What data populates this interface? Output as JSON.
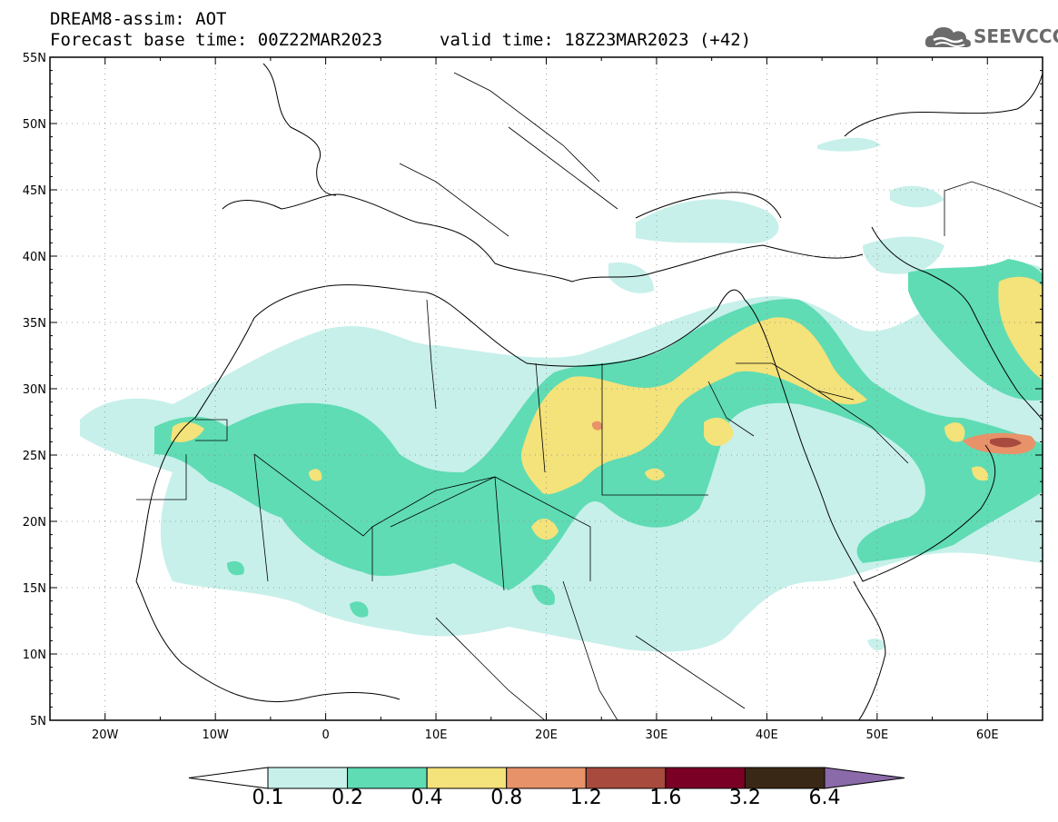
{
  "title": {
    "line1": "DREAM8-assim: AOT",
    "line2": "Forecast base time: 00Z22MAR2023",
    "line3": "valid time: 18Z23MAR2023 (+42)"
  },
  "logo": {
    "text": "SEEVCCC",
    "icon": "cloud-icon"
  },
  "map": {
    "lon_range": [
      -25,
      65
    ],
    "lat_range": [
      5,
      55
    ],
    "lon_ticks": [
      "20W",
      "10W",
      "0",
      "10E",
      "20E",
      "30E",
      "40E",
      "50E",
      "60E"
    ],
    "lat_ticks": [
      "5N",
      "10N",
      "15N",
      "20N",
      "25N",
      "30N",
      "35N",
      "40N",
      "45N",
      "50N",
      "55N"
    ],
    "grid": true
  },
  "colorbar": {
    "labels": [
      "0.1",
      "0.2",
      "0.4",
      "0.8",
      "1.2",
      "1.6",
      "3.2",
      "6.4"
    ],
    "colors": [
      "#ffffff",
      "#c7f0ea",
      "#5fdcb4",
      "#f4e27a",
      "#e8926a",
      "#a84a3e",
      "#7a0025",
      "#3a2816",
      "#8a6aa8"
    ]
  }
}
